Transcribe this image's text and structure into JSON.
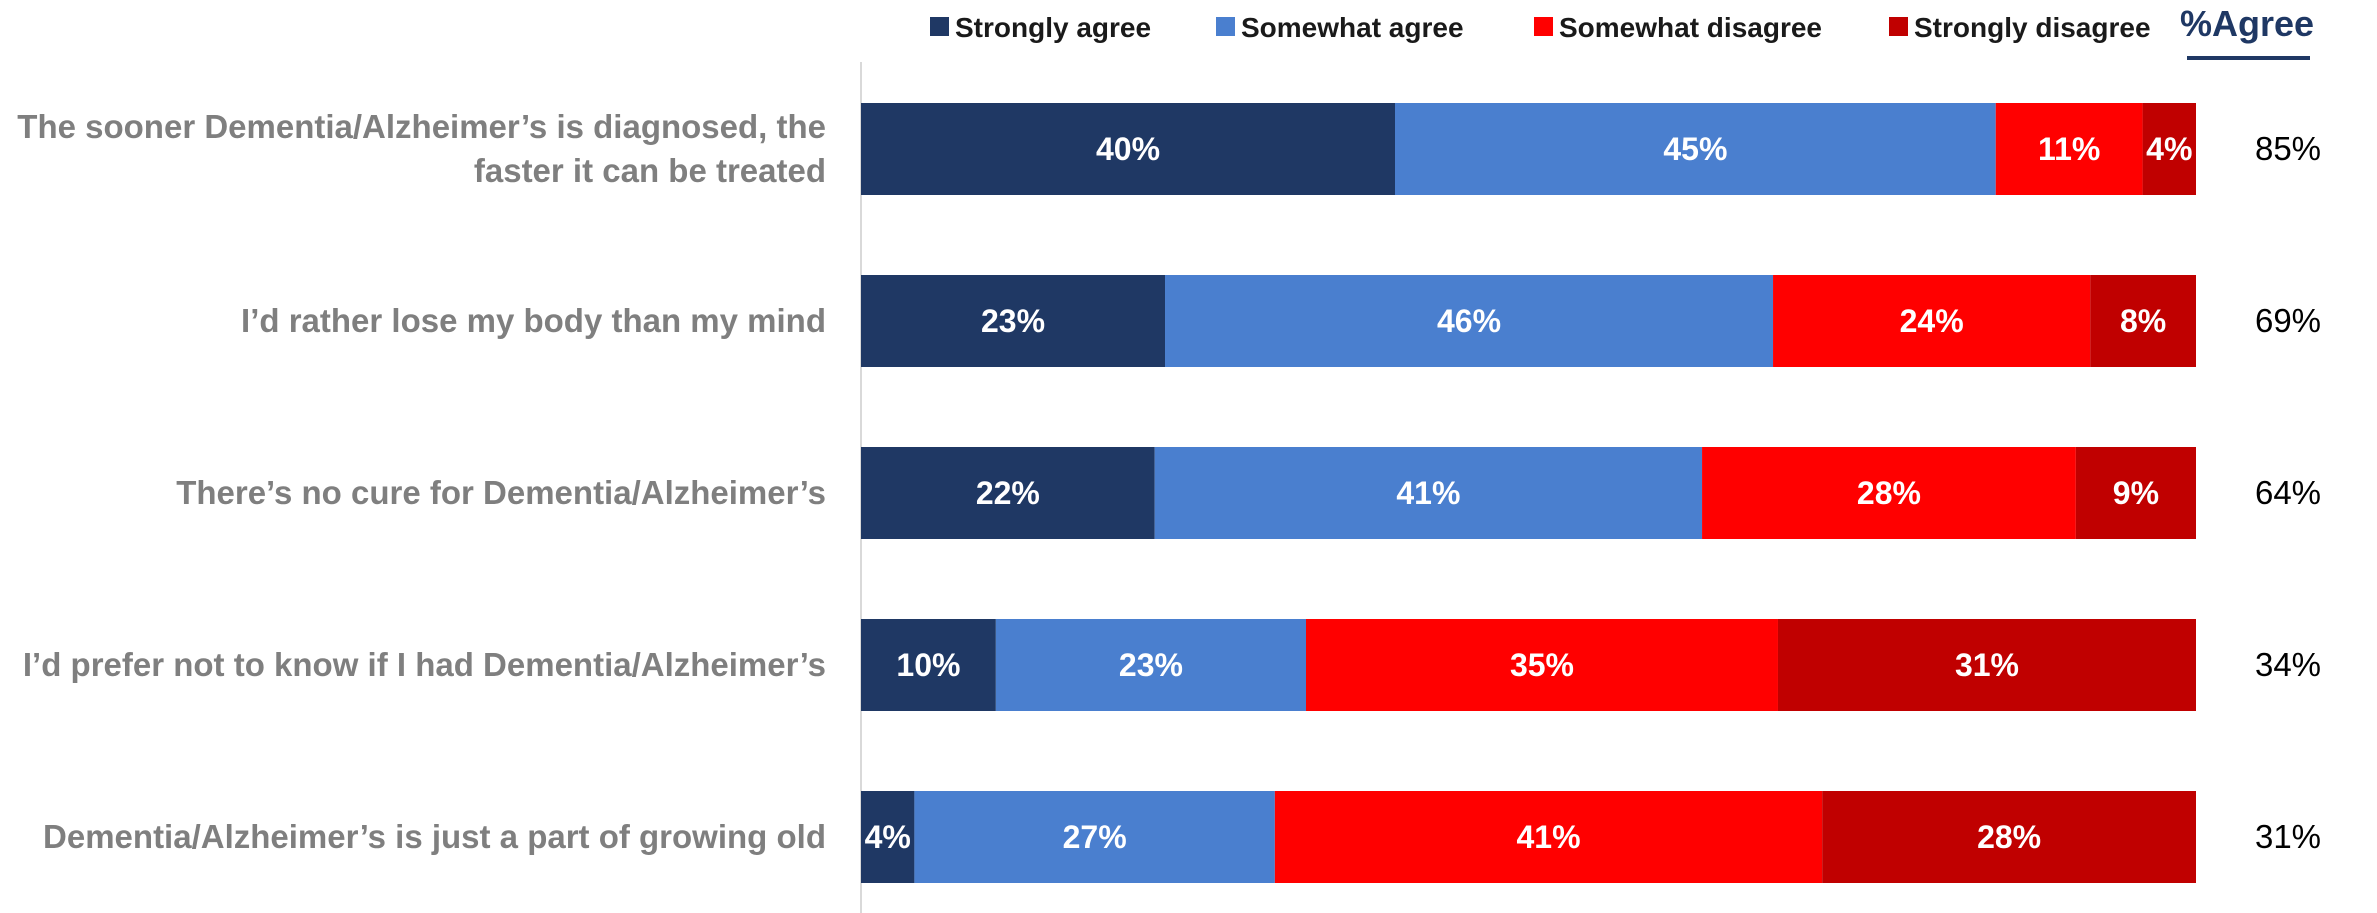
{
  "chart_data": {
    "type": "bar",
    "orientation": "horizontal",
    "stacked": true,
    "categories": [
      [
        "The sooner Dementia/Alzheimer’s is diagnosed, the",
        "faster it can be treated"
      ],
      [
        "I’d rather lose my body than my mind"
      ],
      [
        "There’s no cure for Dementia/Alzheimer’s"
      ],
      [
        "I’d prefer not to know if I had Dementia/Alzheimer’s"
      ],
      [
        "Dementia/Alzheimer’s is just a part of growing old"
      ]
    ],
    "series": [
      {
        "name": "Strongly agree",
        "color": "#1f3864",
        "values": [
          40,
          23,
          22,
          10,
          4
        ]
      },
      {
        "name": "Somewhat agree",
        "color": "#4a7fcf",
        "values": [
          45,
          46,
          41,
          23,
          27
        ]
      },
      {
        "name": "Somewhat disagree",
        "color": "#ff0000",
        "values": [
          11,
          24,
          28,
          35,
          41
        ]
      },
      {
        "name": "Strongly disagree",
        "color": "#c00000",
        "values": [
          4,
          8,
          9,
          31,
          28
        ]
      }
    ],
    "agree_header": "%Agree",
    "agree_values": [
      "85%",
      "69%",
      "64%",
      "34%",
      "31%"
    ],
    "value_suffix": "%",
    "legend_position": "top",
    "grid": false
  }
}
